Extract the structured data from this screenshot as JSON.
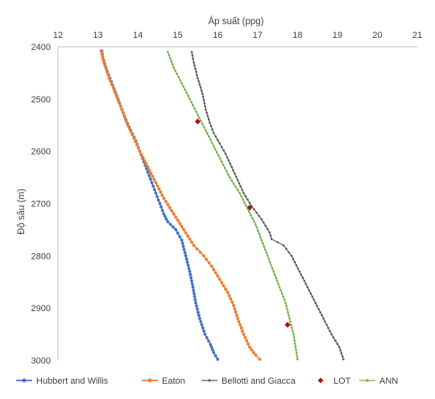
{
  "chart_data": {
    "type": "line",
    "xlabel": "Áp suất (ppg)",
    "ylabel": "Độ sâu (m)",
    "x_axis_position": "top",
    "y_axis_reversed": true,
    "xlim": [
      12,
      21
    ],
    "ylim": [
      2400,
      3000
    ],
    "x_ticks": [
      "12",
      "13",
      "14",
      "15",
      "16",
      "17",
      "18",
      "19",
      "20",
      "21"
    ],
    "y_ticks": [
      "2400",
      "2500",
      "2600",
      "2700",
      "2800",
      "2900",
      "3000"
    ],
    "grid": false,
    "legend_position": "bottom",
    "colors": {
      "hubbert": "#4472C4",
      "eaton": "#ED7D31",
      "bellotti": "#595959",
      "lot": "#C00000",
      "ann": "#70AD47"
    },
    "series": [
      {
        "name": "Hubbert and Willis",
        "color": "#4472C4",
        "marker": "circle",
        "points": [
          [
            13.1,
            2408
          ],
          [
            13.12,
            2420
          ],
          [
            13.2,
            2440
          ],
          [
            13.3,
            2460
          ],
          [
            13.4,
            2480
          ],
          [
            13.5,
            2500
          ],
          [
            13.6,
            2520
          ],
          [
            13.7,
            2540
          ],
          [
            13.82,
            2560
          ],
          [
            13.95,
            2580
          ],
          [
            14.05,
            2600
          ],
          [
            14.15,
            2620
          ],
          [
            14.25,
            2640
          ],
          [
            14.35,
            2660
          ],
          [
            14.45,
            2680
          ],
          [
            14.55,
            2700
          ],
          [
            14.65,
            2720
          ],
          [
            14.75,
            2735
          ],
          [
            14.95,
            2750
          ],
          [
            15.1,
            2770
          ],
          [
            15.2,
            2800
          ],
          [
            15.3,
            2830
          ],
          [
            15.38,
            2860
          ],
          [
            15.45,
            2890
          ],
          [
            15.55,
            2920
          ],
          [
            15.68,
            2950
          ],
          [
            15.82,
            2970
          ],
          [
            15.9,
            2985
          ],
          [
            16.0,
            2998
          ]
        ]
      },
      {
        "name": "Eaton",
        "color": "#ED7D31",
        "marker": "circle",
        "points": [
          [
            13.08,
            2408
          ],
          [
            13.15,
            2430
          ],
          [
            13.28,
            2460
          ],
          [
            13.45,
            2490
          ],
          [
            13.6,
            2520
          ],
          [
            13.75,
            2550
          ],
          [
            13.9,
            2575
          ],
          [
            14.05,
            2600
          ],
          [
            14.25,
            2630
          ],
          [
            14.45,
            2660
          ],
          [
            14.65,
            2690
          ],
          [
            14.9,
            2720
          ],
          [
            15.15,
            2750
          ],
          [
            15.4,
            2780
          ],
          [
            15.65,
            2800
          ],
          [
            15.85,
            2820
          ],
          [
            16.05,
            2845
          ],
          [
            16.25,
            2870
          ],
          [
            16.4,
            2895
          ],
          [
            16.5,
            2920
          ],
          [
            16.65,
            2950
          ],
          [
            16.8,
            2975
          ],
          [
            16.95,
            2990
          ],
          [
            17.05,
            2998
          ]
        ]
      },
      {
        "name": "Bellotti and Giacca",
        "color": "#595959",
        "marker": "dot",
        "points": [
          [
            15.35,
            2410
          ],
          [
            15.4,
            2430
          ],
          [
            15.5,
            2460
          ],
          [
            15.62,
            2490
          ],
          [
            15.7,
            2520
          ],
          [
            15.8,
            2545
          ],
          [
            15.9,
            2565
          ],
          [
            16.05,
            2585
          ],
          [
            16.2,
            2605
          ],
          [
            16.35,
            2630
          ],
          [
            16.5,
            2655
          ],
          [
            16.65,
            2680
          ],
          [
            16.85,
            2705
          ],
          [
            17.1,
            2730
          ],
          [
            17.3,
            2755
          ],
          [
            17.35,
            2768
          ],
          [
            17.65,
            2780
          ],
          [
            17.85,
            2800
          ],
          [
            18.05,
            2830
          ],
          [
            18.25,
            2860
          ],
          [
            18.45,
            2890
          ],
          [
            18.65,
            2920
          ],
          [
            18.85,
            2950
          ],
          [
            19.05,
            2975
          ],
          [
            19.15,
            2998
          ]
        ]
      },
      {
        "name": "LOT",
        "color": "#C00000",
        "marker": "diamond",
        "scatter": true,
        "points": [
          [
            15.5,
            2543
          ],
          [
            16.8,
            2708
          ],
          [
            17.75,
            2932
          ]
        ]
      },
      {
        "name": "ANN",
        "color": "#70AD47",
        "marker": "dot",
        "points": [
          [
            14.75,
            2410
          ],
          [
            14.9,
            2440
          ],
          [
            15.1,
            2470
          ],
          [
            15.3,
            2500
          ],
          [
            15.5,
            2530
          ],
          [
            15.7,
            2560
          ],
          [
            15.9,
            2590
          ],
          [
            16.1,
            2620
          ],
          [
            16.3,
            2650
          ],
          [
            16.55,
            2680
          ],
          [
            16.75,
            2710
          ],
          [
            16.95,
            2740
          ],
          [
            17.1,
            2770
          ],
          [
            17.25,
            2800
          ],
          [
            17.4,
            2830
          ],
          [
            17.55,
            2860
          ],
          [
            17.7,
            2890
          ],
          [
            17.8,
            2920
          ],
          [
            17.9,
            2950
          ],
          [
            18.0,
            2998
          ]
        ]
      }
    ]
  }
}
